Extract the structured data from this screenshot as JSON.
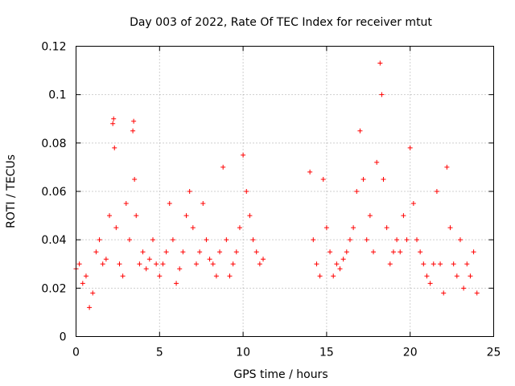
{
  "chart_data": {
    "type": "scatter",
    "title": "Day 003 of 2022, Rate Of TEC Index for receiver mtut",
    "xlabel": "GPS time / hours",
    "ylabel": "ROTI / TECUs",
    "xlim": [
      0,
      25
    ],
    "ylim": [
      0,
      0.12
    ],
    "x_ticks": [
      0,
      5,
      10,
      15,
      20,
      25
    ],
    "x_tick_labels": [
      "0",
      "5",
      "10",
      "15",
      "20",
      "25"
    ],
    "y_ticks": [
      0,
      0.02,
      0.04,
      0.06,
      0.08,
      0.1,
      0.12
    ],
    "y_tick_labels": [
      "0",
      "0.02",
      "0.04",
      "0.06",
      "0.08",
      "0.1",
      "0.12"
    ],
    "grid": true,
    "marker": "+",
    "point_color": "#ff0000",
    "series": [
      {
        "x": [
          0.0,
          0.2,
          0.4,
          0.6,
          0.8,
          1.0,
          1.2,
          1.4,
          1.6,
          1.8,
          2.0,
          2.2,
          2.25,
          2.3,
          2.4,
          2.6,
          2.8,
          3.0,
          3.2,
          3.4,
          3.45,
          3.5,
          3.6,
          3.8,
          4.0,
          4.2,
          4.4,
          4.6,
          4.8,
          5.0,
          5.2,
          5.4,
          5.6,
          5.8,
          6.0,
          6.2,
          6.4,
          6.6,
          6.8,
          7.0,
          7.2,
          7.4,
          7.6,
          7.8,
          8.0,
          8.2,
          8.4,
          8.6,
          8.8,
          9.0,
          9.2,
          9.4,
          9.6,
          9.8,
          10.0,
          10.2,
          10.4,
          10.6,
          10.8,
          11.0,
          11.2,
          14.0,
          14.2,
          14.4,
          14.6,
          14.8,
          15.0,
          15.2,
          15.4,
          15.6,
          15.8,
          16.0,
          16.2,
          16.4,
          16.6,
          16.8,
          17.0,
          17.2,
          17.4,
          17.6,
          17.8,
          18.0,
          18.2,
          18.3,
          18.4,
          18.6,
          18.8,
          19.0,
          19.2,
          19.4,
          19.6,
          19.8,
          20.0,
          20.2,
          20.4,
          20.6,
          20.8,
          21.0,
          21.2,
          21.4,
          21.6,
          21.8,
          22.0,
          22.2,
          22.4,
          22.6,
          22.8,
          23.0,
          23.2,
          23.4,
          23.6,
          23.8,
          24.0
        ],
        "y": [
          0.028,
          0.03,
          0.022,
          0.025,
          0.012,
          0.018,
          0.035,
          0.04,
          0.03,
          0.032,
          0.05,
          0.088,
          0.09,
          0.078,
          0.045,
          0.03,
          0.025,
          0.055,
          0.04,
          0.085,
          0.089,
          0.065,
          0.05,
          0.03,
          0.035,
          0.028,
          0.032,
          0.04,
          0.03,
          0.025,
          0.03,
          0.035,
          0.055,
          0.04,
          0.022,
          0.028,
          0.035,
          0.05,
          0.06,
          0.045,
          0.03,
          0.035,
          0.055,
          0.04,
          0.032,
          0.03,
          0.025,
          0.035,
          0.07,
          0.04,
          0.025,
          0.03,
          0.035,
          0.045,
          0.075,
          0.06,
          0.05,
          0.04,
          0.035,
          0.03,
          0.032,
          0.068,
          0.04,
          0.03,
          0.025,
          0.065,
          0.045,
          0.035,
          0.025,
          0.03,
          0.028,
          0.032,
          0.035,
          0.04,
          0.045,
          0.06,
          0.085,
          0.065,
          0.04,
          0.05,
          0.035,
          0.072,
          0.113,
          0.1,
          0.065,
          0.045,
          0.03,
          0.035,
          0.04,
          0.035,
          0.05,
          0.04,
          0.078,
          0.055,
          0.04,
          0.035,
          0.03,
          0.025,
          0.022,
          0.03,
          0.06,
          0.03,
          0.018,
          0.07,
          0.045,
          0.03,
          0.025,
          0.04,
          0.02,
          0.03,
          0.025,
          0.035,
          0.018
        ]
      }
    ]
  }
}
